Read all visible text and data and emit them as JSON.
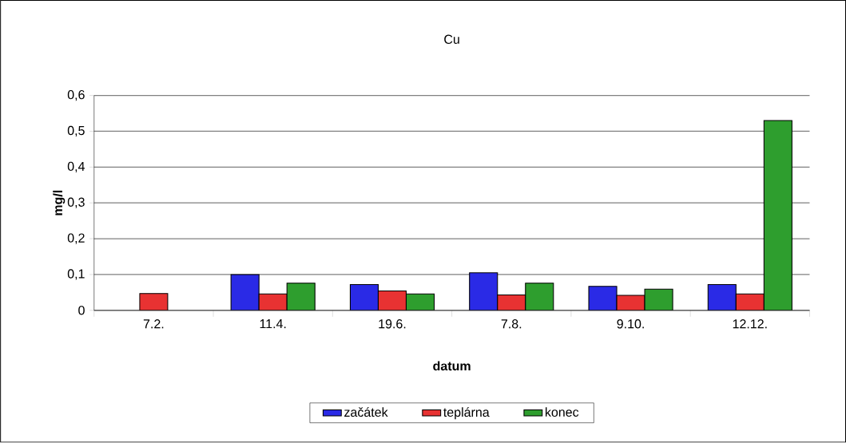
{
  "chart_data": {
    "type": "bar",
    "title": "Cu",
    "xlabel": "datum",
    "ylabel": "mg/l",
    "categories": [
      "7.2.",
      "11.4.",
      "19.6.",
      "7.8.",
      "9.10.",
      "12.12."
    ],
    "series": [
      {
        "name": "začátek",
        "color": "#2a2ae6",
        "values": [
          null,
          0.1,
          0.072,
          0.105,
          0.067,
          0.072
        ]
      },
      {
        "name": "teplárna",
        "color": "#e83232",
        "values": [
          0.047,
          0.046,
          0.054,
          0.043,
          0.042,
          0.046
        ]
      },
      {
        "name": "konec",
        "color": "#2e9e2e",
        "values": [
          null,
          0.076,
          0.046,
          0.076,
          0.059,
          0.53
        ]
      }
    ],
    "ylim": [
      0,
      0.6
    ],
    "yticks": [
      0,
      {
        "value": 0.1,
        "label": "0,1"
      },
      {
        "value": 0.2,
        "label": "0,2"
      },
      {
        "value": 0.3,
        "label": "0,3"
      },
      {
        "value": 0.4,
        "label": "0,4"
      },
      {
        "value": 0.5,
        "label": "0,5"
      },
      {
        "value": 0.6,
        "label": "0,6"
      }
    ],
    "grid": "y",
    "legend": "bottom"
  }
}
